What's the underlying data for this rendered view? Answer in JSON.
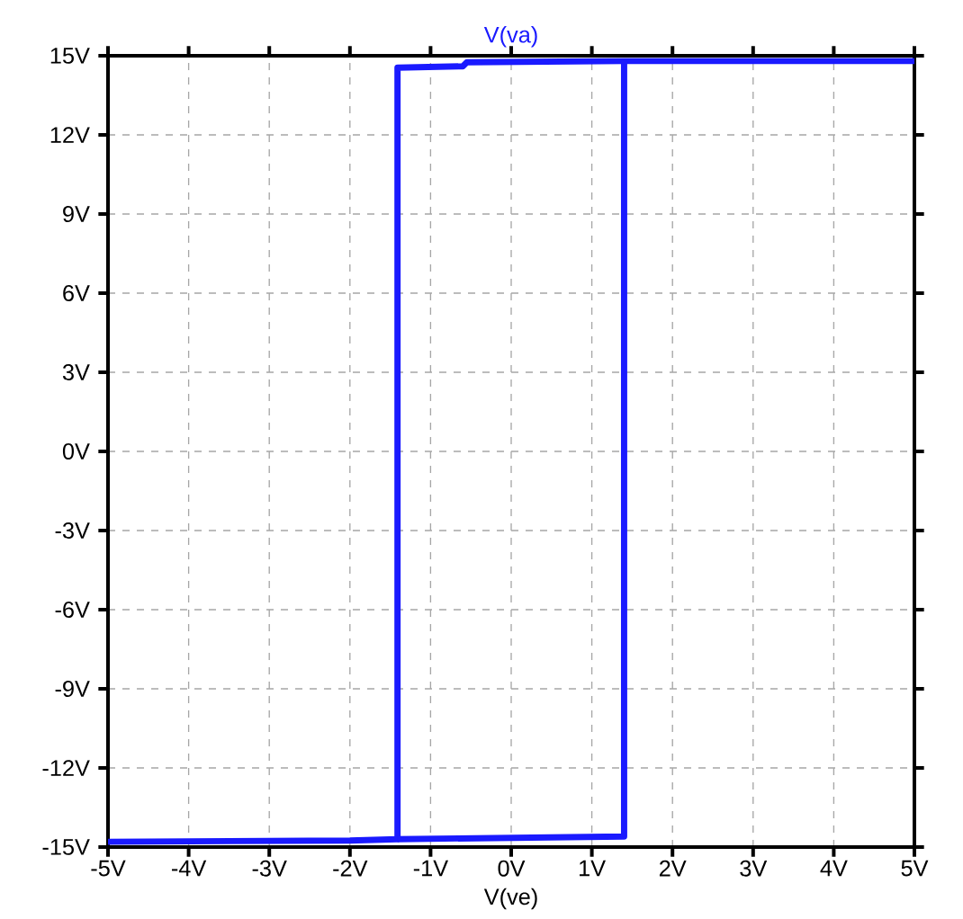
{
  "chart_data": {
    "type": "line",
    "title": "V(va)",
    "xlabel": "V(ve)",
    "xlim": [
      -5,
      5
    ],
    "ylim": [
      -15,
      15
    ],
    "xticks": [
      {
        "value": -5,
        "label": "-5V"
      },
      {
        "value": -4,
        "label": "-4V"
      },
      {
        "value": -3,
        "label": "-3V"
      },
      {
        "value": -2,
        "label": "-2V"
      },
      {
        "value": -1,
        "label": "-1V"
      },
      {
        "value": 0,
        "label": "0V"
      },
      {
        "value": 1,
        "label": "1V"
      },
      {
        "value": 2,
        "label": "2V"
      },
      {
        "value": 3,
        "label": "3V"
      },
      {
        "value": 4,
        "label": "4V"
      },
      {
        "value": 5,
        "label": "5V"
      }
    ],
    "yticks": [
      {
        "value": -15,
        "label": "-15V"
      },
      {
        "value": -12,
        "label": "-12V"
      },
      {
        "value": -9,
        "label": "-9V"
      },
      {
        "value": -6,
        "label": "-6V"
      },
      {
        "value": -3,
        "label": "-3V"
      },
      {
        "value": 0,
        "label": "0V"
      },
      {
        "value": 3,
        "label": "3V"
      },
      {
        "value": 6,
        "label": "6V"
      },
      {
        "value": 9,
        "label": "9V"
      },
      {
        "value": 12,
        "label": "12V"
      },
      {
        "value": 15,
        "label": "15V"
      }
    ],
    "grid": true,
    "marker": "none",
    "line_style": "solid",
    "series": [
      {
        "color": "#1a1aff",
        "x": [
          -5,
          -2,
          -1.41,
          -1.41,
          -0.6,
          -0.55,
          1.4,
          5
        ],
        "values": [
          -14.8,
          -14.75,
          -14.7,
          14.55,
          14.6,
          14.75,
          14.8,
          14.8
        ]
      },
      {
        "color": "#1a1aff",
        "x": [
          -1.41,
          1.4,
          1.4
        ],
        "values": [
          -14.7,
          -14.6,
          14.8
        ]
      }
    ]
  }
}
